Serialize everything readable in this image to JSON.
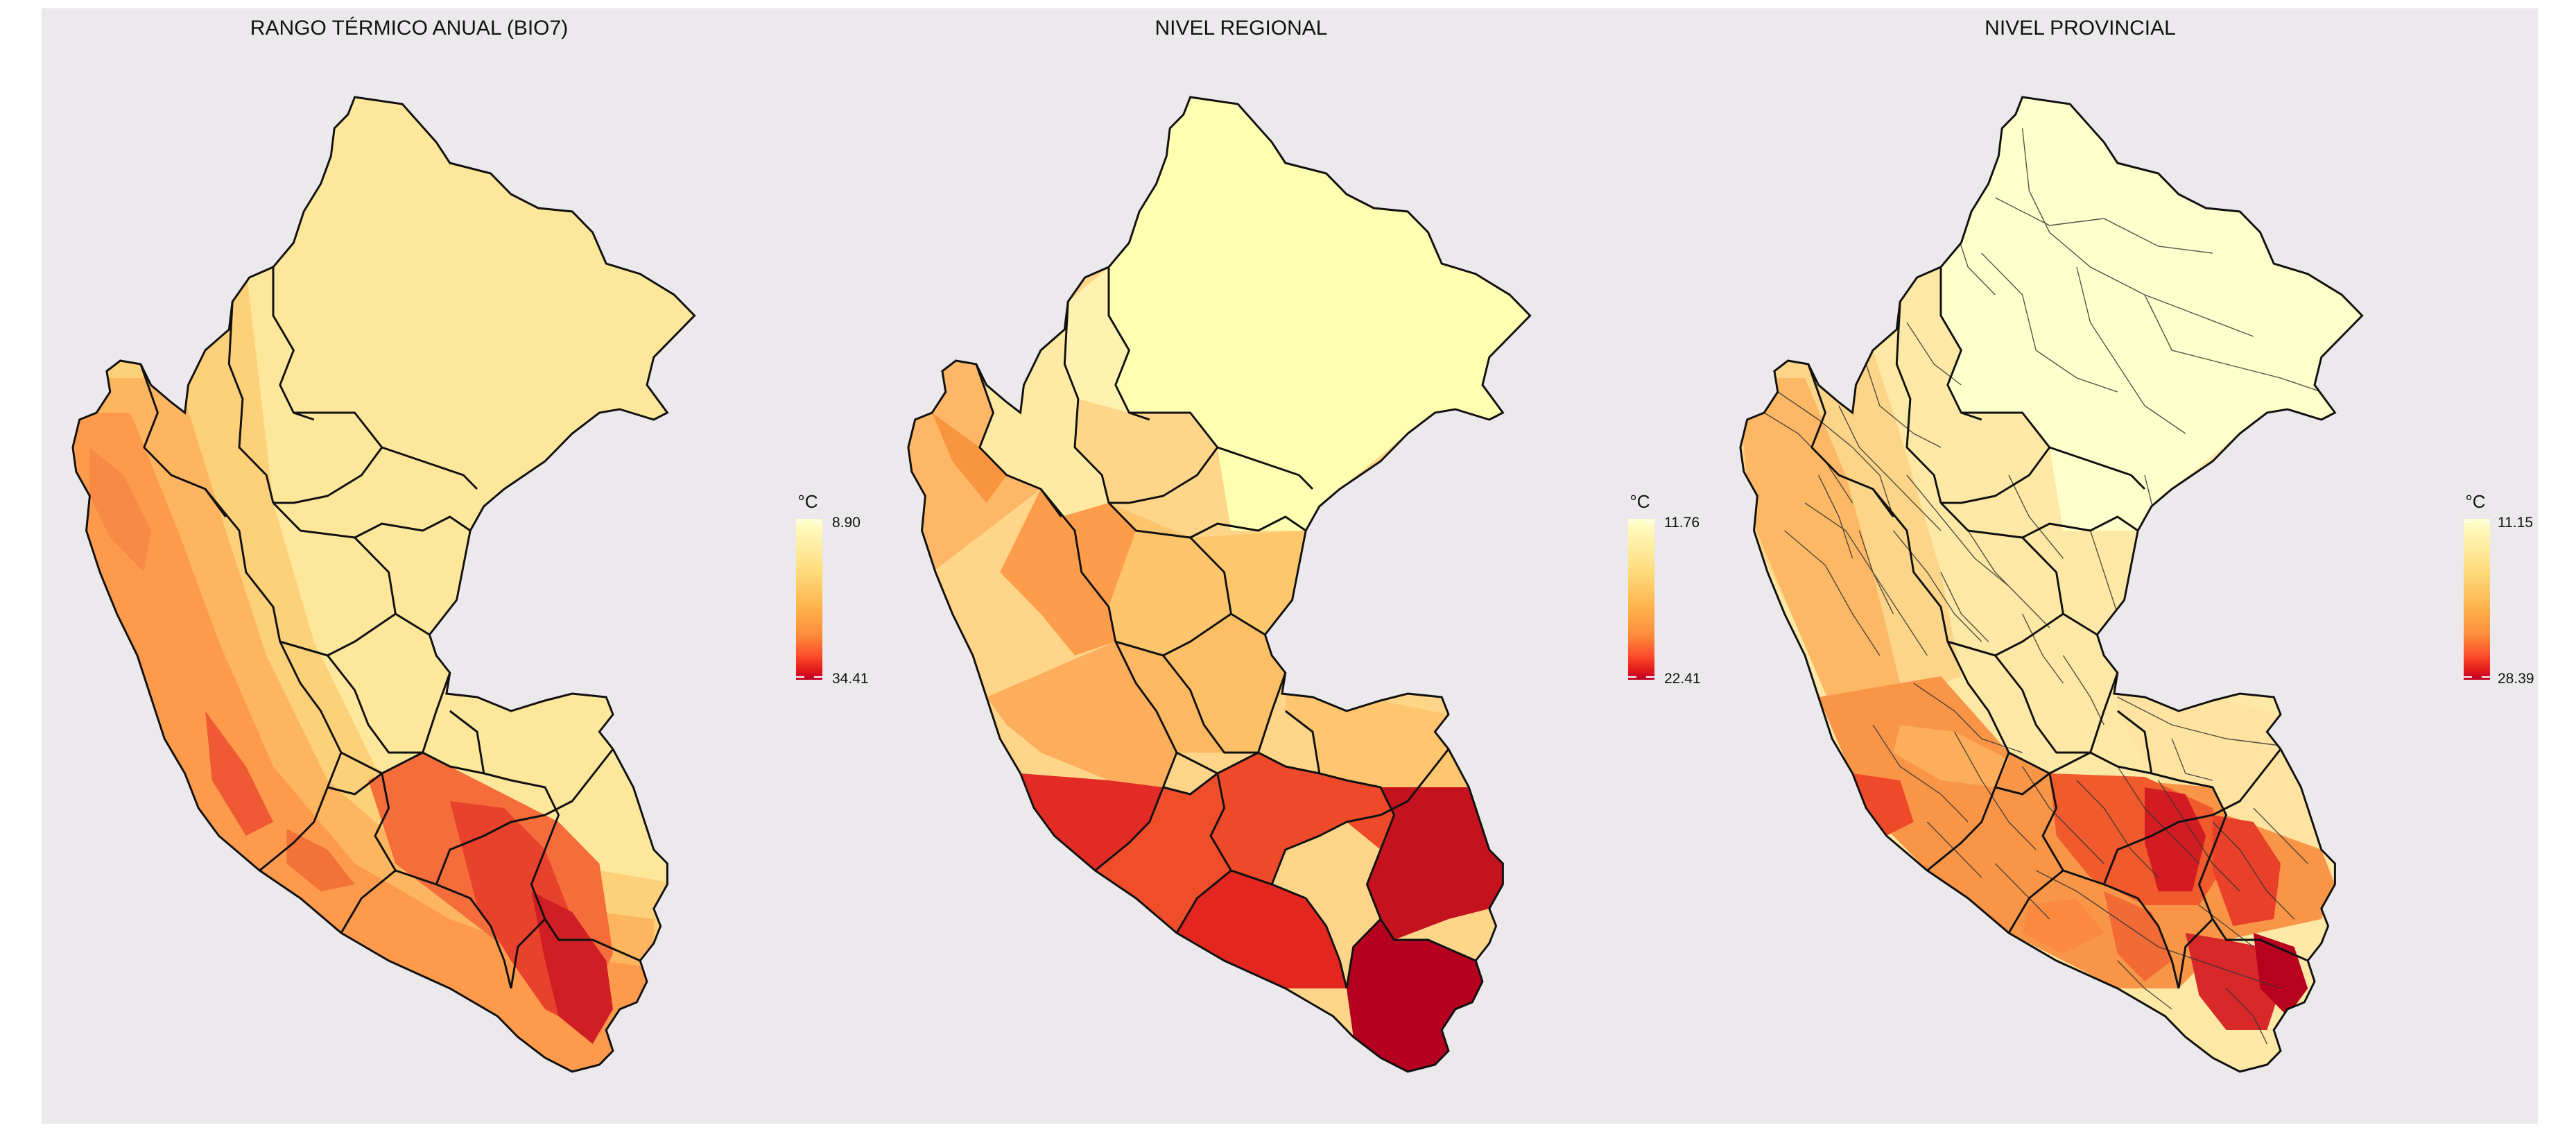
{
  "panels": [
    {
      "title": "RANGO TÉRMICO ANUAL (BIO7)",
      "legend": {
        "unit": "°C",
        "min_label": "8.90",
        "max_label": "34.41"
      }
    },
    {
      "title": "NIVEL REGIONAL",
      "legend": {
        "unit": "°C",
        "min_label": "11.76",
        "max_label": "22.41"
      }
    },
    {
      "title": "NIVEL PROVINCIAL",
      "legend": {
        "unit": "°C",
        "min_label": "11.15",
        "max_label": "28.39"
      }
    }
  ],
  "colors": {
    "background": "#ebe9eb",
    "ramp": [
      "#ffffcc",
      "#fed976",
      "#feb24c",
      "#fd8d3c",
      "#fc4e2a",
      "#e31a1c",
      "#bd0026"
    ],
    "outline": "#111111"
  }
}
